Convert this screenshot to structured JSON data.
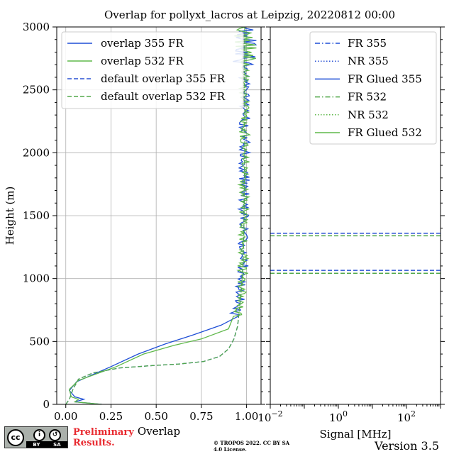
{
  "title": "Overlap for pollyxt_lacros at Leipzig, 20220812 00:00",
  "version_label": "Version 3.5",
  "license_text": "© TROPOS 2022. CC BY SA 4.0 License.",
  "preliminary_lines": [
    "Preliminary",
    "Results."
  ],
  "cc_badge": {
    "cc": "cc",
    "by": "BY",
    "sa": "SA"
  },
  "colors": {
    "blue": "#1f4fd6",
    "green": "#5fb84a",
    "blue_default": "#2a52d4",
    "green_default": "#52a84a",
    "grid": "#b0b0b0"
  },
  "chart_data": [
    {
      "type": "line",
      "ylabel": "Height (m)",
      "xlabel": "Overlap",
      "xlim": [
        -0.05,
        1.08
      ],
      "ylim": [
        0,
        3000
      ],
      "xticks": [
        0.0,
        0.25,
        0.5,
        0.75,
        1.0
      ],
      "xtick_labels": [
        "0.00",
        "0.25",
        "0.50",
        "0.75",
        "1.00"
      ],
      "yticks": [
        0,
        500,
        1000,
        1500,
        2000,
        2500,
        3000
      ],
      "ytick_labels": [
        "0",
        "500",
        "1000",
        "1500",
        "2000",
        "2500",
        "3000"
      ],
      "grid": true,
      "legend_position": "top-left",
      "series": [
        {
          "name": "overlap 355 FR",
          "style": "solid",
          "color": "#1f4fd6",
          "points": [
            [
              0.2,
              0
            ],
            [
              0.05,
              20
            ],
            [
              0.1,
              40
            ],
            [
              0.05,
              60
            ],
            [
              0.02,
              110
            ],
            [
              0.06,
              180
            ],
            [
              0.25,
              300
            ],
            [
              0.4,
              400
            ],
            [
              0.55,
              480
            ],
            [
              0.7,
              550
            ],
            [
              0.86,
              630
            ],
            [
              0.93,
              700
            ],
            [
              0.96,
              800
            ],
            [
              0.97,
              950
            ],
            [
              0.98,
              1100
            ],
            [
              0.98,
              1300
            ],
            [
              0.985,
              1600
            ],
            [
              0.99,
              2000
            ],
            [
              0.99,
              2500
            ],
            [
              0.99,
              3000
            ]
          ]
        },
        {
          "name": "overlap 532 FR",
          "style": "solid",
          "color": "#5fb84a",
          "points": [
            [
              0.2,
              0
            ],
            [
              0.05,
              20
            ],
            [
              0.07,
              40
            ],
            [
              0.03,
              60
            ],
            [
              0.02,
              120
            ],
            [
              0.07,
              190
            ],
            [
              0.28,
              300
            ],
            [
              0.43,
              400
            ],
            [
              0.6,
              470
            ],
            [
              0.75,
              520
            ],
            [
              0.9,
              600
            ],
            [
              0.95,
              700
            ],
            [
              0.97,
              800
            ],
            [
              0.98,
              950
            ],
            [
              0.98,
              1100
            ],
            [
              0.985,
              1300
            ],
            [
              0.985,
              1600
            ],
            [
              0.99,
              2000
            ],
            [
              0.99,
              2500
            ],
            [
              0.99,
              3000
            ]
          ]
        },
        {
          "name": "default overlap 355 FR",
          "style": "dashed",
          "color": "#2a52d4",
          "points": [
            [
              0.0,
              0
            ],
            [
              0.02,
              40
            ],
            [
              0.04,
              120
            ],
            [
              0.07,
              200
            ],
            [
              0.15,
              250
            ],
            [
              0.3,
              290
            ],
            [
              0.5,
              310
            ],
            [
              0.62,
              320
            ],
            [
              0.76,
              340
            ],
            [
              0.85,
              380
            ],
            [
              0.9,
              440
            ],
            [
              0.93,
              520
            ],
            [
              0.95,
              620
            ],
            [
              0.96,
              750
            ],
            [
              0.97,
              900
            ],
            [
              0.98,
              1100
            ],
            [
              0.985,
              1400
            ],
            [
              0.99,
              2000
            ],
            [
              0.99,
              3000
            ]
          ]
        },
        {
          "name": "default overlap 532 FR",
          "style": "dashed",
          "color": "#52a84a",
          "points": [
            [
              0.0,
              0
            ],
            [
              0.02,
              40
            ],
            [
              0.04,
              120
            ],
            [
              0.07,
              200
            ],
            [
              0.15,
              250
            ],
            [
              0.3,
              290
            ],
            [
              0.5,
              310
            ],
            [
              0.62,
              320
            ],
            [
              0.76,
              340
            ],
            [
              0.85,
              380
            ],
            [
              0.9,
              440
            ],
            [
              0.93,
              520
            ],
            [
              0.95,
              620
            ],
            [
              0.96,
              750
            ],
            [
              0.97,
              900
            ],
            [
              0.98,
              1100
            ],
            [
              0.985,
              1400
            ],
            [
              0.99,
              2000
            ],
            [
              0.99,
              3000
            ]
          ]
        }
      ]
    },
    {
      "type": "line",
      "xlabel": "Signal [MHz]",
      "xscale": "log",
      "xlim": [
        0.01,
        1000
      ],
      "ylim": [
        0,
        3000
      ],
      "xticks": [
        0.01,
        1,
        100
      ],
      "xtick_labels": [
        {
          "base": "10",
          "exp": "−2"
        },
        {
          "base": "10",
          "exp": "0"
        },
        {
          "base": "10",
          "exp": "2"
        }
      ],
      "grid": false,
      "legend_position": "top-right",
      "series": [
        {
          "name": "FR 355",
          "style": "dashdot",
          "color": "#1f4fd6"
        },
        {
          "name": "NR 355",
          "style": "dotted",
          "color": "#2a52d4"
        },
        {
          "name": "FR Glued 355",
          "style": "solid",
          "color": "#1f4fd6"
        },
        {
          "name": "FR 532",
          "style": "dashdot",
          "color": "#52a84a"
        },
        {
          "name": "NR 532",
          "style": "dotted",
          "color": "#5fb84a"
        },
        {
          "name": "FR Glued 532",
          "style": "solid",
          "color": "#5fb84a"
        }
      ],
      "hlines": [
        {
          "y": 1360,
          "color": "#2a52d4",
          "style": "dashed"
        },
        {
          "y": 1340,
          "color": "#52a84a",
          "style": "dashed"
        },
        {
          "y": 1065,
          "color": "#2a52d4",
          "style": "dashed"
        },
        {
          "y": 1042,
          "color": "#52a84a",
          "style": "dashed"
        }
      ]
    }
  ]
}
